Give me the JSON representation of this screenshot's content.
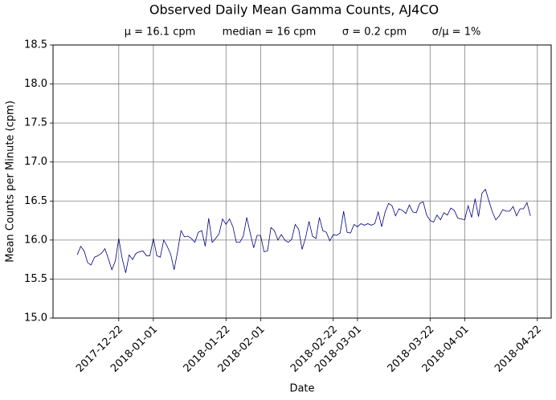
{
  "chart_data": {
    "type": "line",
    "title": "Observed Daily Mean Gamma Counts, AJ4CO",
    "annotations": [
      "μ = 16.1 cpm",
      "median = 16 cpm",
      "σ = 0.2 cpm",
      "σ/μ = 1%"
    ],
    "xlabel": "Date",
    "ylabel": "Mean Counts per Minute (cpm)",
    "x": [
      "2017-12-10",
      "2017-12-11",
      "2017-12-12",
      "2017-12-13",
      "2017-12-14",
      "2017-12-15",
      "2017-12-16",
      "2017-12-17",
      "2017-12-18",
      "2017-12-19",
      "2017-12-20",
      "2017-12-21",
      "2017-12-22",
      "2017-12-23",
      "2017-12-24",
      "2017-12-25",
      "2017-12-26",
      "2017-12-27",
      "2017-12-28",
      "2017-12-29",
      "2017-12-30",
      "2017-12-31",
      "2018-01-01",
      "2018-01-02",
      "2018-01-03",
      "2018-01-04",
      "2018-01-05",
      "2018-01-06",
      "2018-01-07",
      "2018-01-08",
      "2018-01-09",
      "2018-01-10",
      "2018-01-11",
      "2018-01-12",
      "2018-01-13",
      "2018-01-14",
      "2018-01-15",
      "2018-01-16",
      "2018-01-17",
      "2018-01-18",
      "2018-01-19",
      "2018-01-20",
      "2018-01-21",
      "2018-01-22",
      "2018-01-23",
      "2018-01-24",
      "2018-01-25",
      "2018-01-26",
      "2018-01-27",
      "2018-01-28",
      "2018-01-29",
      "2018-01-30",
      "2018-01-31",
      "2018-02-01",
      "2018-02-02",
      "2018-02-03",
      "2018-02-04",
      "2018-02-05",
      "2018-02-06",
      "2018-02-07",
      "2018-02-08",
      "2018-02-09",
      "2018-02-10",
      "2018-02-11",
      "2018-02-12",
      "2018-02-13",
      "2018-02-14",
      "2018-02-15",
      "2018-02-16",
      "2018-02-17",
      "2018-02-18",
      "2018-02-19",
      "2018-02-20",
      "2018-02-21",
      "2018-02-22",
      "2018-02-23",
      "2018-02-24",
      "2018-02-25",
      "2018-02-26",
      "2018-02-27",
      "2018-02-28",
      "2018-03-01",
      "2018-03-02",
      "2018-03-03",
      "2018-03-04",
      "2018-03-05",
      "2018-03-06",
      "2018-03-07",
      "2018-03-08",
      "2018-03-09",
      "2018-03-10",
      "2018-03-11",
      "2018-03-12",
      "2018-03-13",
      "2018-03-14",
      "2018-03-15",
      "2018-03-16",
      "2018-03-17",
      "2018-03-18",
      "2018-03-19",
      "2018-03-20",
      "2018-03-21",
      "2018-03-22",
      "2018-03-23",
      "2018-03-24",
      "2018-03-25",
      "2018-03-26",
      "2018-03-27",
      "2018-03-28",
      "2018-03-29",
      "2018-03-30",
      "2018-03-31",
      "2018-04-01",
      "2018-04-02",
      "2018-04-03",
      "2018-04-04",
      "2018-04-05",
      "2018-04-06",
      "2018-04-07",
      "2018-04-08",
      "2018-04-09",
      "2018-04-10",
      "2018-04-11",
      "2018-04-12",
      "2018-04-13",
      "2018-04-14",
      "2018-04-15",
      "2018-04-16",
      "2018-04-17",
      "2018-04-18",
      "2018-04-19",
      "2018-04-20"
    ],
    "series": [
      {
        "color": "#000080",
        "values": [
          15.81,
          15.92,
          15.86,
          15.71,
          15.68,
          15.78,
          15.8,
          15.83,
          15.89,
          15.76,
          15.62,
          15.73,
          16.02,
          15.76,
          15.58,
          15.81,
          15.75,
          15.83,
          15.85,
          15.86,
          15.8,
          15.8,
          16.02,
          15.8,
          15.78,
          16.0,
          15.92,
          15.82,
          15.62,
          15.85,
          16.12,
          16.04,
          16.05,
          16.02,
          15.97,
          16.1,
          16.12,
          15.92,
          16.28,
          15.97,
          16.02,
          16.08,
          16.27,
          16.2,
          16.27,
          16.17,
          15.97,
          15.97,
          16.05,
          16.29,
          16.09,
          15.9,
          16.06,
          16.06,
          15.85,
          15.86,
          16.16,
          16.12,
          16.0,
          16.07,
          16.0,
          15.97,
          16.01,
          16.2,
          16.14,
          15.88,
          16.03,
          16.24,
          16.05,
          16.02,
          16.29,
          16.12,
          16.1,
          15.99,
          16.07,
          16.06,
          16.09,
          16.37,
          16.1,
          16.09,
          16.2,
          16.17,
          16.21,
          16.19,
          16.21,
          16.19,
          16.21,
          16.36,
          16.17,
          16.36,
          16.47,
          16.44,
          16.31,
          16.4,
          16.38,
          16.34,
          16.45,
          16.36,
          16.35,
          16.47,
          16.49,
          16.32,
          16.25,
          16.23,
          16.32,
          16.26,
          16.35,
          16.32,
          16.41,
          16.38,
          16.28,
          16.27,
          16.26,
          16.44,
          16.29,
          16.53,
          16.3,
          16.6,
          16.65,
          16.5,
          16.36,
          16.26,
          16.31,
          16.39,
          16.37,
          16.37,
          16.43,
          16.31,
          16.4,
          16.4,
          16.48,
          16.31
        ]
      }
    ],
    "xlim": [
      "2017-12-03",
      "2018-04-26"
    ],
    "xticks": [
      "2017-12-22",
      "2018-01-01",
      "2018-01-22",
      "2018-02-01",
      "2018-02-22",
      "2018-03-01",
      "2018-03-22",
      "2018-04-01",
      "2018-04-22"
    ],
    "ylim": [
      15,
      18.5
    ],
    "yticks": [
      {
        "value": 15,
        "label": "15.0"
      },
      15.5,
      {
        "value": 16,
        "label": "16.0"
      },
      16.5,
      {
        "value": 17,
        "label": "17.0"
      },
      17.5,
      {
        "value": 18,
        "label": "18.0"
      },
      18.5
    ],
    "grid": true
  }
}
